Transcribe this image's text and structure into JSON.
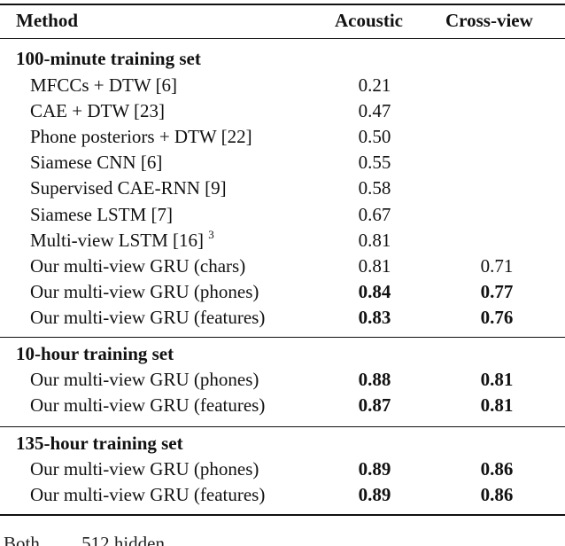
{
  "table": {
    "headers": {
      "method": "Method",
      "acoustic": "Acoustic",
      "cross_view": "Cross-view"
    },
    "sections": [
      {
        "title": "100-minute training set",
        "rows": [
          {
            "method": "MFCCs + DTW [6]",
            "acoustic": "0.21",
            "cross_view": "",
            "ac_bold": false,
            "cv_bold": false
          },
          {
            "method": "CAE + DTW [23]",
            "acoustic": "0.47",
            "cross_view": "",
            "ac_bold": false,
            "cv_bold": false
          },
          {
            "method": "Phone posteriors + DTW [22]",
            "acoustic": "0.50",
            "cross_view": "",
            "ac_bold": false,
            "cv_bold": false
          },
          {
            "method": "Siamese CNN [6]",
            "acoustic": "0.55",
            "cross_view": "",
            "ac_bold": false,
            "cv_bold": false
          },
          {
            "method": "Supervised CAE-RNN [9]",
            "acoustic": "0.58",
            "cross_view": "",
            "ac_bold": false,
            "cv_bold": false
          },
          {
            "method": "Siamese LSTM [7]",
            "acoustic": "0.67",
            "cross_view": "",
            "ac_bold": false,
            "cv_bold": false
          },
          {
            "method": "Multi-view LSTM [16]",
            "footnote": "3",
            "acoustic": "0.81",
            "cross_view": "",
            "ac_bold": false,
            "cv_bold": false
          },
          {
            "method": "Our multi-view GRU (chars)",
            "acoustic": "0.81",
            "cross_view": "0.71",
            "ac_bold": false,
            "cv_bold": false
          },
          {
            "method": "Our multi-view GRU (phones)",
            "acoustic": "0.84",
            "cross_view": "0.77",
            "ac_bold": true,
            "cv_bold": true
          },
          {
            "method": "Our multi-view GRU (features)",
            "acoustic": "0.83",
            "cross_view": "0.76",
            "ac_bold": true,
            "cv_bold": true
          }
        ]
      },
      {
        "title": "10-hour training set",
        "rows": [
          {
            "method": "Our multi-view GRU (phones)",
            "acoustic": "0.88",
            "cross_view": "0.81",
            "ac_bold": true,
            "cv_bold": true
          },
          {
            "method": "Our multi-view GRU (features)",
            "acoustic": "0.87",
            "cross_view": "0.81",
            "ac_bold": true,
            "cv_bold": true
          }
        ]
      },
      {
        "title": "135-hour training set",
        "rows": [
          {
            "method": "Our multi-view GRU (phones)",
            "acoustic": "0.89",
            "cross_view": "0.86",
            "ac_bold": true,
            "cv_bold": true
          },
          {
            "method": "Our multi-view GRU (features)",
            "acoustic": "0.89",
            "cross_view": "0.86",
            "ac_bold": true,
            "cv_bold": true
          }
        ]
      }
    ]
  },
  "caption_fragment": "Both ... ... 512 hidden ... ..."
}
